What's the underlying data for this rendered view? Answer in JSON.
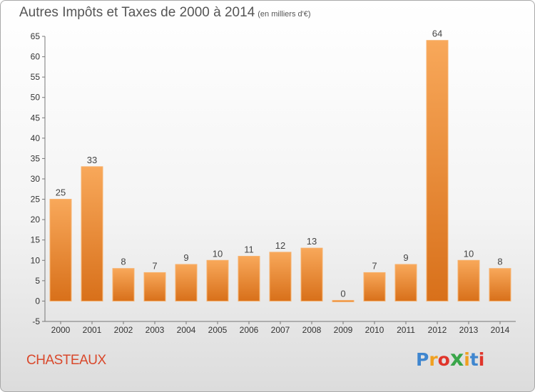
{
  "chart_data": {
    "type": "bar",
    "title": "Autres Impôts et Taxes de 2000 à 2014",
    "subtitle": "(en milliers d'€)",
    "categories": [
      "2000",
      "2001",
      "2002",
      "2003",
      "2004",
      "2005",
      "2006",
      "2007",
      "2008",
      "2009",
      "2010",
      "2011",
      "2012",
      "2013",
      "2014"
    ],
    "values": [
      25,
      33,
      8,
      7,
      9,
      10,
      11,
      12,
      13,
      0,
      7,
      9,
      64,
      10,
      8
    ],
    "ylim": [
      -5,
      65
    ],
    "yticks": [
      -5,
      0,
      5,
      10,
      15,
      20,
      25,
      30,
      35,
      40,
      45,
      50,
      55,
      60,
      65
    ],
    "grid": false,
    "bar_color": "#f0861f",
    "xlabel": "",
    "ylabel": ""
  },
  "footer": {
    "place": "CHASTEAUX",
    "brand": "Proxiti",
    "brand_letters": [
      "P",
      "r",
      "o",
      "x",
      "i",
      "t",
      "i"
    ],
    "brand_colors": [
      "#3f86cf",
      "#f0a020",
      "#e0352b",
      "#3aa64a",
      "#f0a020",
      "#3f86cf",
      "#e0352b"
    ]
  }
}
